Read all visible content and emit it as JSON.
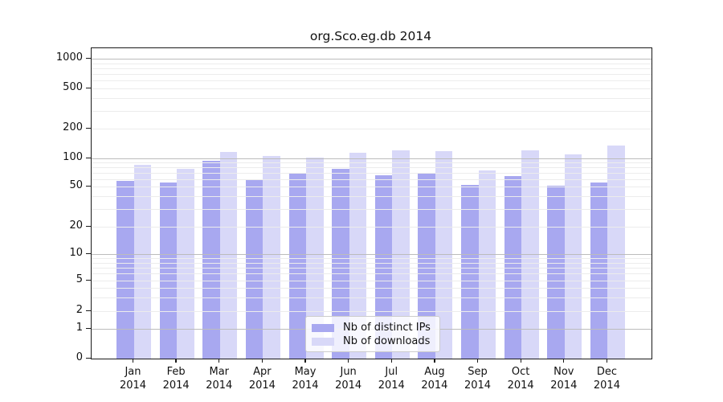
{
  "title": "org.Sco.eg.db 2014",
  "legend": {
    "items": [
      {
        "label": "Nb of distinct IPs",
        "color": "#a8a8f0"
      },
      {
        "label": "Nb of downloads",
        "color": "#d8d8f8"
      }
    ],
    "position": "bottom-center"
  },
  "colors": {
    "bar_dark": "#a8a8f0",
    "bar_light": "#d8d8f8",
    "grid_minor": "#ececec",
    "grid_major": "#bcbcbc",
    "axis": "#1a1a1a",
    "background": "#ffffff"
  },
  "chart_data": {
    "type": "bar",
    "title": "org.Sco.eg.db 2014",
    "categories": [
      "Jan 2014",
      "Feb 2014",
      "Mar 2014",
      "Apr 2014",
      "May 2014",
      "Jun 2014",
      "Jul 2014",
      "Aug 2014",
      "Sep 2014",
      "Oct 2014",
      "Nov 2014",
      "Dec 2014"
    ],
    "series": [
      {
        "name": "Nb of distinct IPs",
        "color": "#a8a8f0",
        "values": [
          58,
          55,
          94,
          59,
          70,
          77,
          66,
          69,
          52,
          65,
          51,
          55
        ]
      },
      {
        "name": "Nb of downloads",
        "color": "#d8d8f8",
        "values": [
          86,
          77,
          116,
          106,
          101,
          113,
          121,
          118,
          74,
          121,
          110,
          135
        ]
      }
    ],
    "xlabel": "",
    "ylabel": "",
    "y_scale": "symlog",
    "y_ticks": [
      1000,
      500,
      200,
      100,
      50,
      20,
      10,
      5,
      2,
      1,
      0
    ],
    "ylim": [
      0,
      1200
    ],
    "grid": true,
    "major_gridlines": [
      1,
      10,
      100,
      1000
    ],
    "minor_gridlines": [
      2,
      3,
      4,
      5,
      6,
      7,
      8,
      9,
      20,
      30,
      40,
      50,
      60,
      70,
      80,
      90,
      200,
      300,
      400,
      500,
      600,
      700,
      800,
      900
    ],
    "legend_position": "bottom-center"
  }
}
